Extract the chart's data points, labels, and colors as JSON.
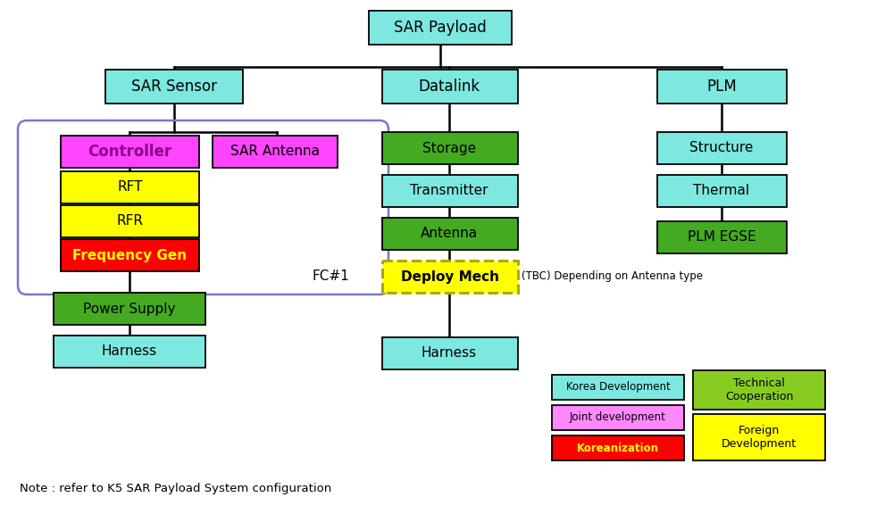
{
  "bg_color": "#ffffff",
  "cyan_box": "#7de8e0",
  "magenta_box": "#ff44ff",
  "yellow_box": "#ffff00",
  "red_box": "#ff0000",
  "green_box": "#44aa22",
  "lime_box": "#88cc22",
  "note": "Note : refer to K5 SAR Payload System configuration",
  "tbc_note": "(TBC) Depending on Antenna type",
  "fc1": "FC#1"
}
